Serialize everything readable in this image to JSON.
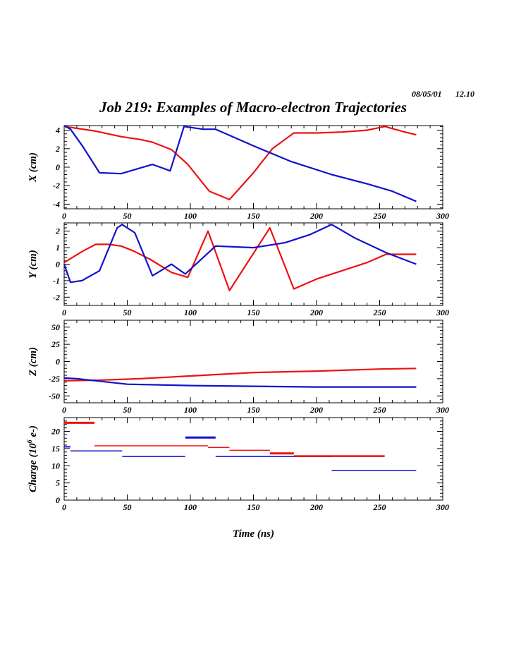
{
  "header": {
    "date": "08/05/01",
    "time": "12.10",
    "title": "Job 219: Examples of Macro-electron Trajectories"
  },
  "colors": {
    "red": "#ee1111",
    "blue": "#1111cc"
  },
  "chart_data": [
    {
      "type": "line",
      "ylabel": "X (cm)",
      "xlabel": "",
      "xlim": [
        0,
        300
      ],
      "ylim": [
        -4.5,
        4.5
      ],
      "xticks": [
        0,
        50,
        100,
        150,
        200,
        250,
        300
      ],
      "yticks": [
        -4,
        -2,
        0,
        2,
        4
      ],
      "ytick_labels": [
        "-4",
        "-2",
        "0",
        "2",
        "4"
      ],
      "series": [
        {
          "color": "red",
          "x": [
            0,
            10,
            25,
            45,
            60,
            70,
            85,
            98,
            115,
            131,
            150,
            165,
            182,
            200,
            220,
            240,
            254,
            270,
            279
          ],
          "y": [
            4.4,
            4.2,
            3.9,
            3.3,
            3.0,
            2.7,
            1.9,
            0.3,
            -2.6,
            -3.5,
            -0.6,
            2.0,
            3.7,
            3.7,
            3.8,
            4.0,
            4.4,
            3.8,
            3.5
          ]
        },
        {
          "color": "blue",
          "x": [
            0,
            5,
            15,
            28,
            45,
            70,
            84,
            95,
            110,
            120,
            150,
            180,
            212,
            240,
            260,
            279
          ],
          "y": [
            4.5,
            4.1,
            2.2,
            -0.6,
            -0.7,
            0.3,
            -0.4,
            4.4,
            4.1,
            4.1,
            2.3,
            0.6,
            -0.8,
            -1.8,
            -2.6,
            -3.7
          ]
        }
      ]
    },
    {
      "type": "line",
      "ylabel": "Y (cm)",
      "xlabel": "",
      "xlim": [
        0,
        300
      ],
      "ylim": [
        -2.5,
        2.5
      ],
      "xticks": [
        0,
        50,
        100,
        150,
        200,
        250,
        300
      ],
      "yticks": [
        -2,
        -1,
        0,
        1,
        2
      ],
      "ytick_labels": [
        "-2",
        "-1",
        "0",
        "1",
        "2"
      ],
      "series": [
        {
          "color": "red",
          "x": [
            0,
            15,
            25,
            35,
            45,
            55,
            68,
            85,
            98,
            114,
            131,
            163,
            182,
            200,
            220,
            240,
            255,
            279
          ],
          "y": [
            0.1,
            0.8,
            1.2,
            1.2,
            1.1,
            0.8,
            0.3,
            -0.5,
            -0.8,
            2.0,
            -1.6,
            2.2,
            -1.5,
            -0.9,
            -0.4,
            0.1,
            0.6,
            0.6
          ]
        },
        {
          "color": "blue",
          "x": [
            0,
            5,
            14,
            28,
            42,
            46,
            56,
            70,
            85,
            96,
            120,
            150,
            175,
            195,
            212,
            230,
            255,
            279
          ],
          "y": [
            0.0,
            -1.1,
            -1.0,
            -0.4,
            2.2,
            2.4,
            1.9,
            -0.7,
            0.0,
            -0.6,
            1.1,
            1.0,
            1.3,
            1.8,
            2.4,
            1.6,
            0.7,
            0.0
          ]
        }
      ]
    },
    {
      "type": "line",
      "ylabel": "Z (cm)",
      "xlabel": "",
      "xlim": [
        0,
        300
      ],
      "ylim": [
        -60,
        60
      ],
      "xticks": [
        0,
        50,
        100,
        150,
        200,
        250,
        300
      ],
      "yticks": [
        -50,
        -25,
        0,
        25,
        50
      ],
      "ytick_labels": [
        "-50",
        "-25",
        "0",
        "25",
        "50"
      ],
      "series": [
        {
          "color": "red",
          "x": [
            0,
            30,
            60,
            100,
            150,
            200,
            250,
            279
          ],
          "y": [
            -28,
            -27,
            -25,
            -21,
            -16,
            -14,
            -11,
            -10
          ]
        },
        {
          "color": "blue",
          "x": [
            0,
            10,
            25,
            50,
            100,
            150,
            200,
            250,
            279
          ],
          "y": [
            -24,
            -25,
            -28,
            -33,
            -35,
            -36,
            -37,
            -37,
            -37
          ]
        }
      ]
    },
    {
      "type": "step",
      "ylabel": "Charge (10^6 e-)",
      "xlabel": "Time (ns)",
      "xlim": [
        0,
        300
      ],
      "ylim": [
        0,
        24
      ],
      "xticks": [
        0,
        50,
        100,
        150,
        200,
        250,
        300
      ],
      "yticks": [
        0,
        5,
        10,
        15,
        20
      ],
      "ytick_labels": [
        "0",
        "5",
        "10",
        "15",
        "20"
      ],
      "segments": [
        {
          "color": "red",
          "x0": 0,
          "x1": 24,
          "y": 22.5,
          "w": 3
        },
        {
          "color": "blue",
          "x0": 0,
          "x1": 5,
          "y": 15.5,
          "w": 2
        },
        {
          "color": "blue",
          "x0": 5,
          "x1": 46,
          "y": 14.3,
          "w": 1.5
        },
        {
          "color": "red",
          "x0": 24,
          "x1": 114,
          "y": 15.8,
          "w": 1.5
        },
        {
          "color": "blue",
          "x0": 46,
          "x1": 96,
          "y": 12.7,
          "w": 1.5
        },
        {
          "color": "blue",
          "x0": 96,
          "x1": 120,
          "y": 18.2,
          "w": 3
        },
        {
          "color": "red",
          "x0": 114,
          "x1": 131,
          "y": 15.3,
          "w": 1.5
        },
        {
          "color": "red",
          "x0": 131,
          "x1": 163,
          "y": 14.5,
          "w": 1.5
        },
        {
          "color": "red",
          "x0": 163,
          "x1": 182,
          "y": 13.6,
          "w": 3
        },
        {
          "color": "blue",
          "x0": 120,
          "x1": 212,
          "y": 12.7,
          "w": 1.5
        },
        {
          "color": "red",
          "x0": 182,
          "x1": 254,
          "y": 12.8,
          "w": 2.5
        },
        {
          "color": "blue",
          "x0": 212,
          "x1": 279,
          "y": 8.6,
          "w": 1.5
        }
      ]
    }
  ]
}
